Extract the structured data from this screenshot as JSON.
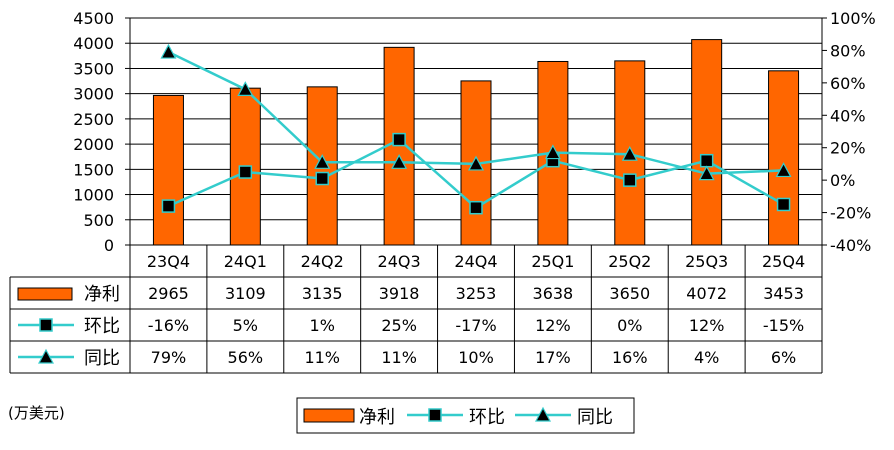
{
  "chart_data": {
    "type": "bar",
    "categories": [
      "23Q4",
      "24Q1",
      "24Q2",
      "24Q3",
      "24Q4",
      "25Q1",
      "25Q2",
      "25Q3",
      "25Q4"
    ],
    "series": [
      {
        "name": "净利",
        "kind": "bar",
        "axis": "left",
        "color": "#FF6600",
        "values": [
          2965,
          3109,
          3135,
          3918,
          3253,
          3638,
          3650,
          4072,
          3453
        ],
        "labels": [
          "2965",
          "3109",
          "3135",
          "3918",
          "3253",
          "3638",
          "3650",
          "4072",
          "3453"
        ]
      },
      {
        "name": "环比",
        "kind": "line",
        "marker": "square",
        "axis": "right",
        "color": "#33CCCC",
        "values": [
          -16,
          5,
          1,
          25,
          -17,
          12,
          0,
          12,
          -15
        ],
        "labels": [
          "-16%",
          "5%",
          "1%",
          "25%",
          "-17%",
          "12%",
          "0%",
          "12%",
          "-15%"
        ]
      },
      {
        "name": "同比",
        "kind": "line",
        "marker": "triangle",
        "axis": "right",
        "color": "#33CCCC",
        "values": [
          79,
          56,
          11,
          11,
          10,
          17,
          16,
          4,
          6
        ],
        "labels": [
          "79%",
          "56%",
          "11%",
          "11%",
          "10%",
          "17%",
          "16%",
          "4%",
          "6%"
        ]
      }
    ],
    "y_left": {
      "ylim": [
        0,
        4500
      ],
      "ticks": [
        0,
        500,
        1000,
        1500,
        2000,
        2500,
        3000,
        3500,
        4000,
        4500
      ],
      "tick_labels": [
        "0",
        "500",
        "1000",
        "1500",
        "2000",
        "2500",
        "3000",
        "3500",
        "4000",
        "4500"
      ]
    },
    "y_right": {
      "ylim": [
        -40,
        100
      ],
      "ticks": [
        -40,
        -20,
        0,
        20,
        40,
        60,
        80,
        100
      ],
      "tick_labels": [
        "-40%",
        "-20%",
        "0%",
        "20%",
        "40%",
        "60%",
        "80%",
        "100%"
      ]
    },
    "grid": true,
    "data_table": true,
    "unit_note": "(万美元)",
    "legend": {
      "placement": "bottom-center",
      "entries": [
        "净利",
        "环比",
        "同比"
      ]
    }
  }
}
